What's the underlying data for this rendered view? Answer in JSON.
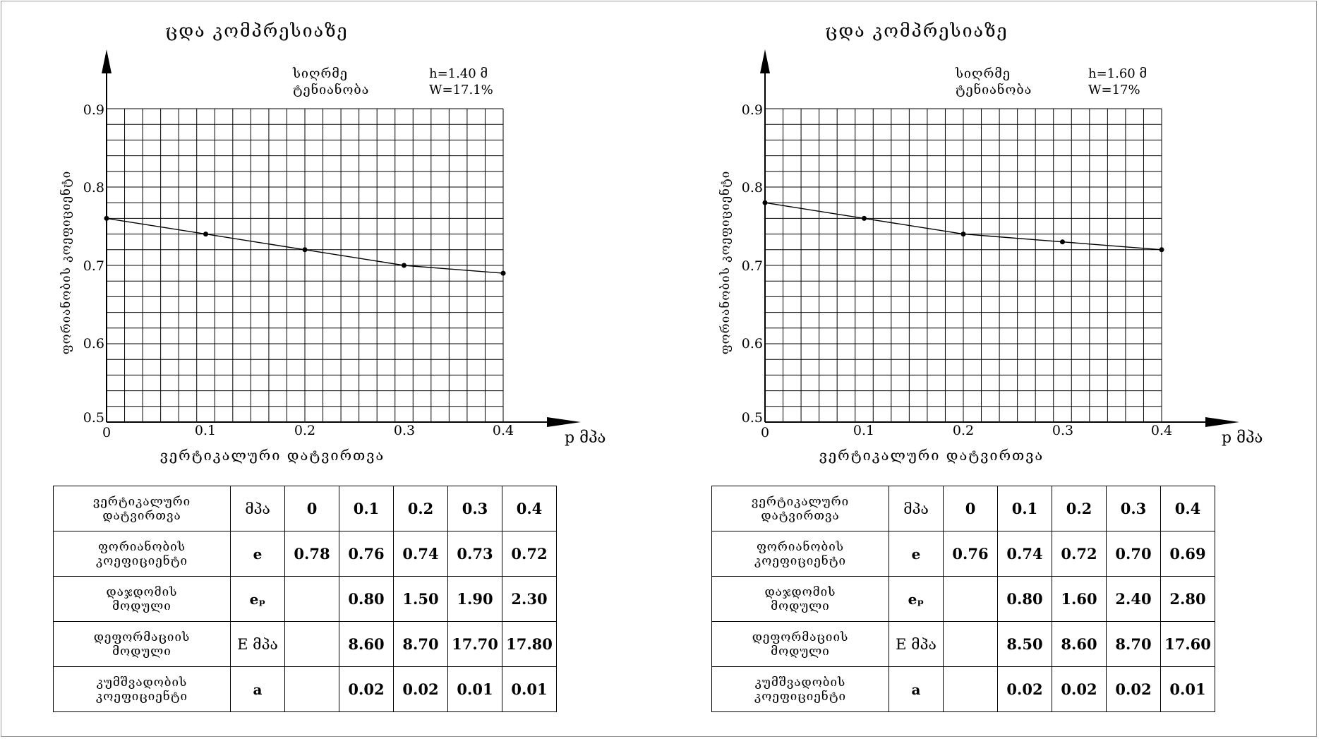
{
  "charts": [
    {
      "title": "ცდა კომპრესიაზე",
      "depth_label": "სიღრმე",
      "depth_value": "h=1.40 მ",
      "moisture_label": "ტენიანობა",
      "moisture_value": "W=17.1%",
      "ylabel": "ფორიანობის კოეფიციენტი",
      "xlabel": "ვერტიკალური დატვირთვა",
      "x_unit": "p მპა",
      "x_ticks": [
        "0",
        "0.1",
        "0.2",
        "0.3",
        "0.4"
      ],
      "y_ticks": [
        "0.5",
        "0.6",
        "0.7",
        "0.8",
        "0.9"
      ],
      "table": {
        "rows": [
          {
            "label1": "ვერტიკალური",
            "label2": "დატვირთვა",
            "symbol": "მპა",
            "values": [
              "0",
              "0.1",
              "0.2",
              "0.3",
              "0.4"
            ]
          },
          {
            "label1": "ფორიანობის",
            "label2": "კოეფიციენტი",
            "symbol": "e",
            "values": [
              "0.78",
              "0.76",
              "0.74",
              "0.73",
              "0.72"
            ]
          },
          {
            "label1": "დაჯდომის",
            "label2": "მოდული",
            "symbol": "eₚ",
            "values": [
              "",
              "0.80",
              "1.50",
              "1.90",
              "2.30"
            ]
          },
          {
            "label1": "დეფორმაციის",
            "label2": "მოდული",
            "symbol": "E მპა",
            "values": [
              "",
              "8.60",
              "8.70",
              "17.70",
              "17.80"
            ]
          },
          {
            "label1": "კუმშვადობის",
            "label2": "კოეფიციენტი",
            "symbol": "a",
            "values": [
              "",
              "0.02",
              "0.02",
              "0.01",
              "0.01"
            ]
          }
        ]
      }
    },
    {
      "title": "ცდა კომპრესიაზე",
      "depth_label": "სიღრმე",
      "depth_value": "h=1.60 მ",
      "moisture_label": "ტენიანობა",
      "moisture_value": "W=17%",
      "ylabel": "ფორიანობის კოეფიციენტი",
      "xlabel": "ვერტიკალური დატვირთვა",
      "x_unit": "p მპა",
      "x_ticks": [
        "0",
        "0.1",
        "0.2",
        "0.3",
        "0.4"
      ],
      "y_ticks": [
        "0.5",
        "0.6",
        "0.7",
        "0.8",
        "0.9"
      ],
      "table": {
        "rows": [
          {
            "label1": "ვერტიკალური",
            "label2": "დატვირთვა",
            "symbol": "მპა",
            "values": [
              "0",
              "0.1",
              "0.2",
              "0.3",
              "0.4"
            ]
          },
          {
            "label1": "ფორიანობის",
            "label2": "კოეფიციენტი",
            "symbol": "e",
            "values": [
              "0.76",
              "0.74",
              "0.72",
              "0.70",
              "0.69"
            ]
          },
          {
            "label1": "დაჯდომის",
            "label2": "მოდული",
            "symbol": "eₚ",
            "values": [
              "",
              "0.80",
              "1.60",
              "2.40",
              "2.80"
            ]
          },
          {
            "label1": "დეფორმაციის",
            "label2": "მოდული",
            "symbol": "E მპა",
            "values": [
              "",
              "8.50",
              "8.60",
              "8.70",
              "17.60"
            ]
          },
          {
            "label1": "კუმშვადობის",
            "label2": "კოეფიციენტი",
            "symbol": "a",
            "values": [
              "",
              "0.02",
              "0.02",
              "0.02",
              "0.01"
            ]
          }
        ]
      }
    }
  ],
  "chart_data": [
    {
      "type": "line",
      "title": "ცდა კომპრესიაზე",
      "xlabel": "ვერტიკალური დატვირთვა",
      "ylabel": "ფორიანობის კოეფიციენტი",
      "x": [
        0,
        0.1,
        0.2,
        0.3,
        0.4
      ],
      "series": [
        {
          "values": [
            0.76,
            0.74,
            0.72,
            0.7,
            0.69
          ]
        }
      ],
      "xlim": [
        0,
        0.4
      ],
      "ylim": [
        0.5,
        0.9
      ],
      "grid": true,
      "color": "#000000"
    },
    {
      "type": "line",
      "title": "ცდა კომპრესიაზე",
      "xlabel": "ვერტიკალური დატვირთვა",
      "ylabel": "ფორიანობის კოეფიციენტი",
      "x": [
        0,
        0.1,
        0.2,
        0.3,
        0.4
      ],
      "series": [
        {
          "values": [
            0.78,
            0.76,
            0.74,
            0.73,
            0.72
          ]
        }
      ],
      "xlim": [
        0,
        0.4
      ],
      "ylim": [
        0.5,
        0.9
      ],
      "grid": true,
      "color": "#000000"
    }
  ]
}
